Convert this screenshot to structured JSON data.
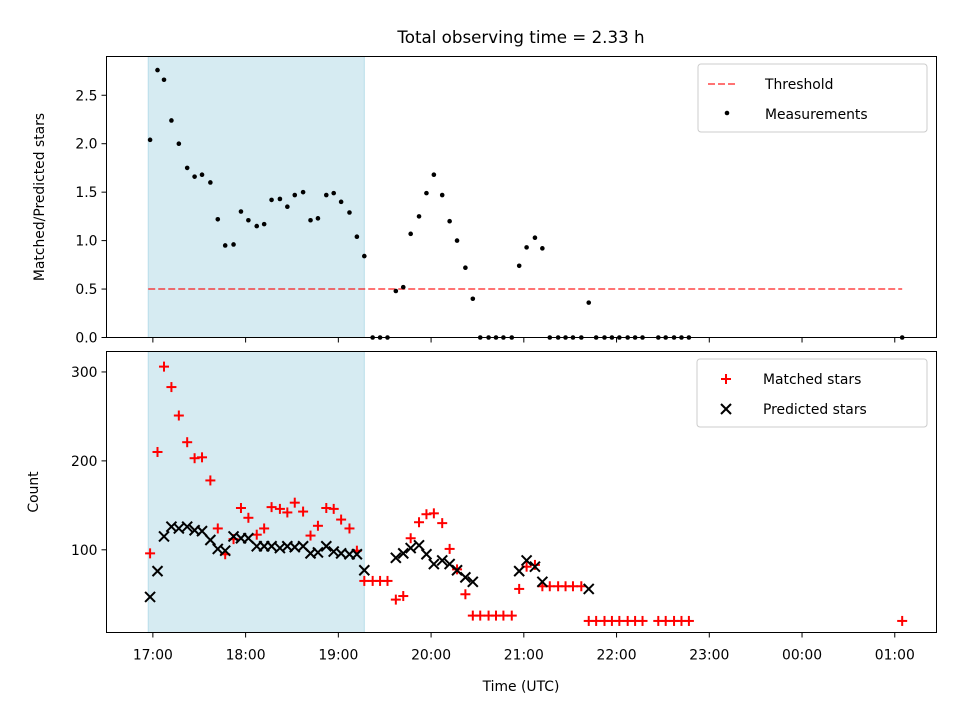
{
  "chart_data": {
    "title": "Total observing time = 2.33 h",
    "xlabel": "Time (UTC)",
    "x_ticks": [
      "17:00",
      "18:00",
      "19:00",
      "20:00",
      "21:00",
      "22:00",
      "23:00",
      "00:00",
      "01:00"
    ],
    "x_tick_hours": [
      17,
      18,
      19,
      20,
      21,
      22,
      23,
      24,
      25
    ],
    "xlim_hours": [
      16.5,
      25.45
    ],
    "shaded_span_hours": [
      16.95,
      19.28
    ],
    "shade_color": "#add8e6",
    "panels": [
      {
        "type": "scatter",
        "ylabel": "Matched/Predicted stars",
        "ylim": [
          0,
          2.9
        ],
        "y_ticks": [
          0.0,
          0.5,
          1.0,
          1.5,
          2.0,
          2.5
        ],
        "y_tick_labels": [
          "0.0",
          "0.5",
          "1.0",
          "1.5",
          "2.0",
          "2.5"
        ],
        "threshold": {
          "name": "Threshold",
          "value": 0.5,
          "x_range": [
            16.95,
            25.08
          ],
          "color": "#ff0000",
          "style": "dashed"
        },
        "series": [
          {
            "name": "Measurements",
            "marker": "dot",
            "color": "#000000",
            "points": [
              [
                16.97,
                2.04
              ],
              [
                17.05,
                2.76
              ],
              [
                17.12,
                2.66
              ],
              [
                17.2,
                2.24
              ],
              [
                17.28,
                2.0
              ],
              [
                17.37,
                1.75
              ],
              [
                17.45,
                1.66
              ],
              [
                17.53,
                1.68
              ],
              [
                17.62,
                1.6
              ],
              [
                17.7,
                1.22
              ],
              [
                17.78,
                0.95
              ],
              [
                17.87,
                0.96
              ],
              [
                17.95,
                1.3
              ],
              [
                18.03,
                1.21
              ],
              [
                18.12,
                1.15
              ],
              [
                18.2,
                1.17
              ],
              [
                18.28,
                1.42
              ],
              [
                18.37,
                1.43
              ],
              [
                18.45,
                1.35
              ],
              [
                18.53,
                1.47
              ],
              [
                18.62,
                1.5
              ],
              [
                18.7,
                1.21
              ],
              [
                18.78,
                1.23
              ],
              [
                18.87,
                1.47
              ],
              [
                18.95,
                1.49
              ],
              [
                19.03,
                1.4
              ],
              [
                19.12,
                1.29
              ],
              [
                19.2,
                1.04
              ],
              [
                19.28,
                0.84
              ],
              [
                19.37,
                0.0
              ],
              [
                19.45,
                0.0
              ],
              [
                19.53,
                0.0
              ],
              [
                19.62,
                0.48
              ],
              [
                19.7,
                0.52
              ],
              [
                19.78,
                1.07
              ],
              [
                19.87,
                1.25
              ],
              [
                19.95,
                1.49
              ],
              [
                20.03,
                1.68
              ],
              [
                20.12,
                1.47
              ],
              [
                20.2,
                1.2
              ],
              [
                20.28,
                1.0
              ],
              [
                20.37,
                0.72
              ],
              [
                20.45,
                0.4
              ],
              [
                20.53,
                0.0
              ],
              [
                20.62,
                0.0
              ],
              [
                20.7,
                0.0
              ],
              [
                20.78,
                0.0
              ],
              [
                20.87,
                0.0
              ],
              [
                20.95,
                0.74
              ],
              [
                21.03,
                0.93
              ],
              [
                21.12,
                1.03
              ],
              [
                21.2,
                0.92
              ],
              [
                21.28,
                0.0
              ],
              [
                21.37,
                0.0
              ],
              [
                21.45,
                0.0
              ],
              [
                21.53,
                0.0
              ],
              [
                21.62,
                0.0
              ],
              [
                21.7,
                0.36
              ],
              [
                21.78,
                0.0
              ],
              [
                21.87,
                0.0
              ],
              [
                21.95,
                0.0
              ],
              [
                22.03,
                0.0
              ],
              [
                22.12,
                0.0
              ],
              [
                22.2,
                0.0
              ],
              [
                22.28,
                0.0
              ],
              [
                22.45,
                0.0
              ],
              [
                22.53,
                0.0
              ],
              [
                22.62,
                0.0
              ],
              [
                22.7,
                0.0
              ],
              [
                22.78,
                0.0
              ],
              [
                25.08,
                0.0
              ]
            ]
          }
        ],
        "legend": {
          "location": "upper right",
          "entries": [
            "Threshold",
            "Measurements"
          ]
        }
      },
      {
        "type": "scatter",
        "ylabel": "Count",
        "ylim": [
          7,
          323
        ],
        "y_ticks": [
          100,
          200,
          300
        ],
        "y_tick_labels": [
          "100",
          "200",
          "300"
        ],
        "series": [
          {
            "name": "Matched stars",
            "marker": "plus",
            "color": "#ff0000",
            "points": [
              [
                16.97,
                96
              ],
              [
                17.05,
                210
              ],
              [
                17.12,
                306
              ],
              [
                17.2,
                283
              ],
              [
                17.28,
                251
              ],
              [
                17.37,
                221
              ],
              [
                17.45,
                203
              ],
              [
                17.53,
                204
              ],
              [
                17.62,
                178
              ],
              [
                17.7,
                124
              ],
              [
                17.78,
                95
              ],
              [
                17.87,
                112
              ],
              [
                17.95,
                147
              ],
              [
                18.03,
                136
              ],
              [
                18.12,
                117
              ],
              [
                18.2,
                124
              ],
              [
                18.28,
                148
              ],
              [
                18.37,
                146
              ],
              [
                18.45,
                142
              ],
              [
                18.53,
                153
              ],
              [
                18.62,
                143
              ],
              [
                18.7,
                116
              ],
              [
                18.78,
                127
              ],
              [
                18.87,
                147
              ],
              [
                18.95,
                146
              ],
              [
                19.03,
                134
              ],
              [
                19.12,
                124
              ],
              [
                19.2,
                99
              ],
              [
                19.28,
                65
              ],
              [
                19.37,
                65
              ],
              [
                19.45,
                65
              ],
              [
                19.53,
                65
              ],
              [
                19.62,
                44
              ],
              [
                19.7,
                48
              ],
              [
                19.78,
                113
              ],
              [
                19.87,
                131
              ],
              [
                19.95,
                140
              ],
              [
                20.03,
                141
              ],
              [
                20.12,
                130
              ],
              [
                20.2,
                101
              ],
              [
                20.28,
                78
              ],
              [
                20.37,
                50
              ],
              [
                20.45,
                26
              ],
              [
                20.53,
                26
              ],
              [
                20.62,
                26
              ],
              [
                20.7,
                26
              ],
              [
                20.78,
                26
              ],
              [
                20.87,
                26
              ],
              [
                20.95,
                56
              ],
              [
                21.03,
                81
              ],
              [
                21.12,
                83
              ],
              [
                21.2,
                59
              ],
              [
                21.28,
                59
              ],
              [
                21.37,
                59
              ],
              [
                21.45,
                59
              ],
              [
                21.53,
                59
              ],
              [
                21.62,
                59
              ],
              [
                21.7,
                20
              ],
              [
                21.78,
                20
              ],
              [
                21.87,
                20
              ],
              [
                21.95,
                20
              ],
              [
                22.03,
                20
              ],
              [
                22.12,
                20
              ],
              [
                22.2,
                20
              ],
              [
                22.28,
                20
              ],
              [
                22.45,
                20
              ],
              [
                22.53,
                20
              ],
              [
                22.62,
                20
              ],
              [
                22.7,
                20
              ],
              [
                22.78,
                20
              ],
              [
                25.08,
                20
              ]
            ]
          },
          {
            "name": "Predicted stars",
            "marker": "x",
            "color": "#000000",
            "points": [
              [
                16.97,
                47
              ],
              [
                17.05,
                76
              ],
              [
                17.12,
                115
              ],
              [
                17.2,
                126
              ],
              [
                17.28,
                124
              ],
              [
                17.37,
                126
              ],
              [
                17.45,
                122
              ],
              [
                17.53,
                121
              ],
              [
                17.62,
                111
              ],
              [
                17.7,
                101
              ],
              [
                17.78,
                99
              ],
              [
                17.87,
                115
              ],
              [
                17.95,
                113
              ],
              [
                18.03,
                113
              ],
              [
                18.12,
                104
              ],
              [
                18.2,
                104
              ],
              [
                18.28,
                104
              ],
              [
                18.37,
                102
              ],
              [
                18.45,
                104
              ],
              [
                18.53,
                103
              ],
              [
                18.62,
                104
              ],
              [
                18.7,
                96
              ],
              [
                18.78,
                97
              ],
              [
                18.87,
                104
              ],
              [
                18.95,
                98
              ],
              [
                19.03,
                96
              ],
              [
                19.12,
                95
              ],
              [
                19.2,
                95
              ],
              [
                19.28,
                77
              ],
              [
                19.62,
                91
              ],
              [
                19.7,
                96
              ],
              [
                19.78,
                102
              ],
              [
                19.87,
                105
              ],
              [
                19.95,
                95
              ],
              [
                20.03,
                84
              ],
              [
                20.12,
                88
              ],
              [
                20.2,
                84
              ],
              [
                20.28,
                77
              ],
              [
                20.37,
                69
              ],
              [
                20.45,
                64
              ],
              [
                20.95,
                76
              ],
              [
                21.03,
                88
              ],
              [
                21.12,
                81
              ],
              [
                21.2,
                64
              ],
              [
                21.7,
                56
              ]
            ]
          }
        ],
        "legend": {
          "location": "upper right",
          "entries": [
            "Matched stars",
            "Predicted stars"
          ]
        }
      }
    ]
  }
}
